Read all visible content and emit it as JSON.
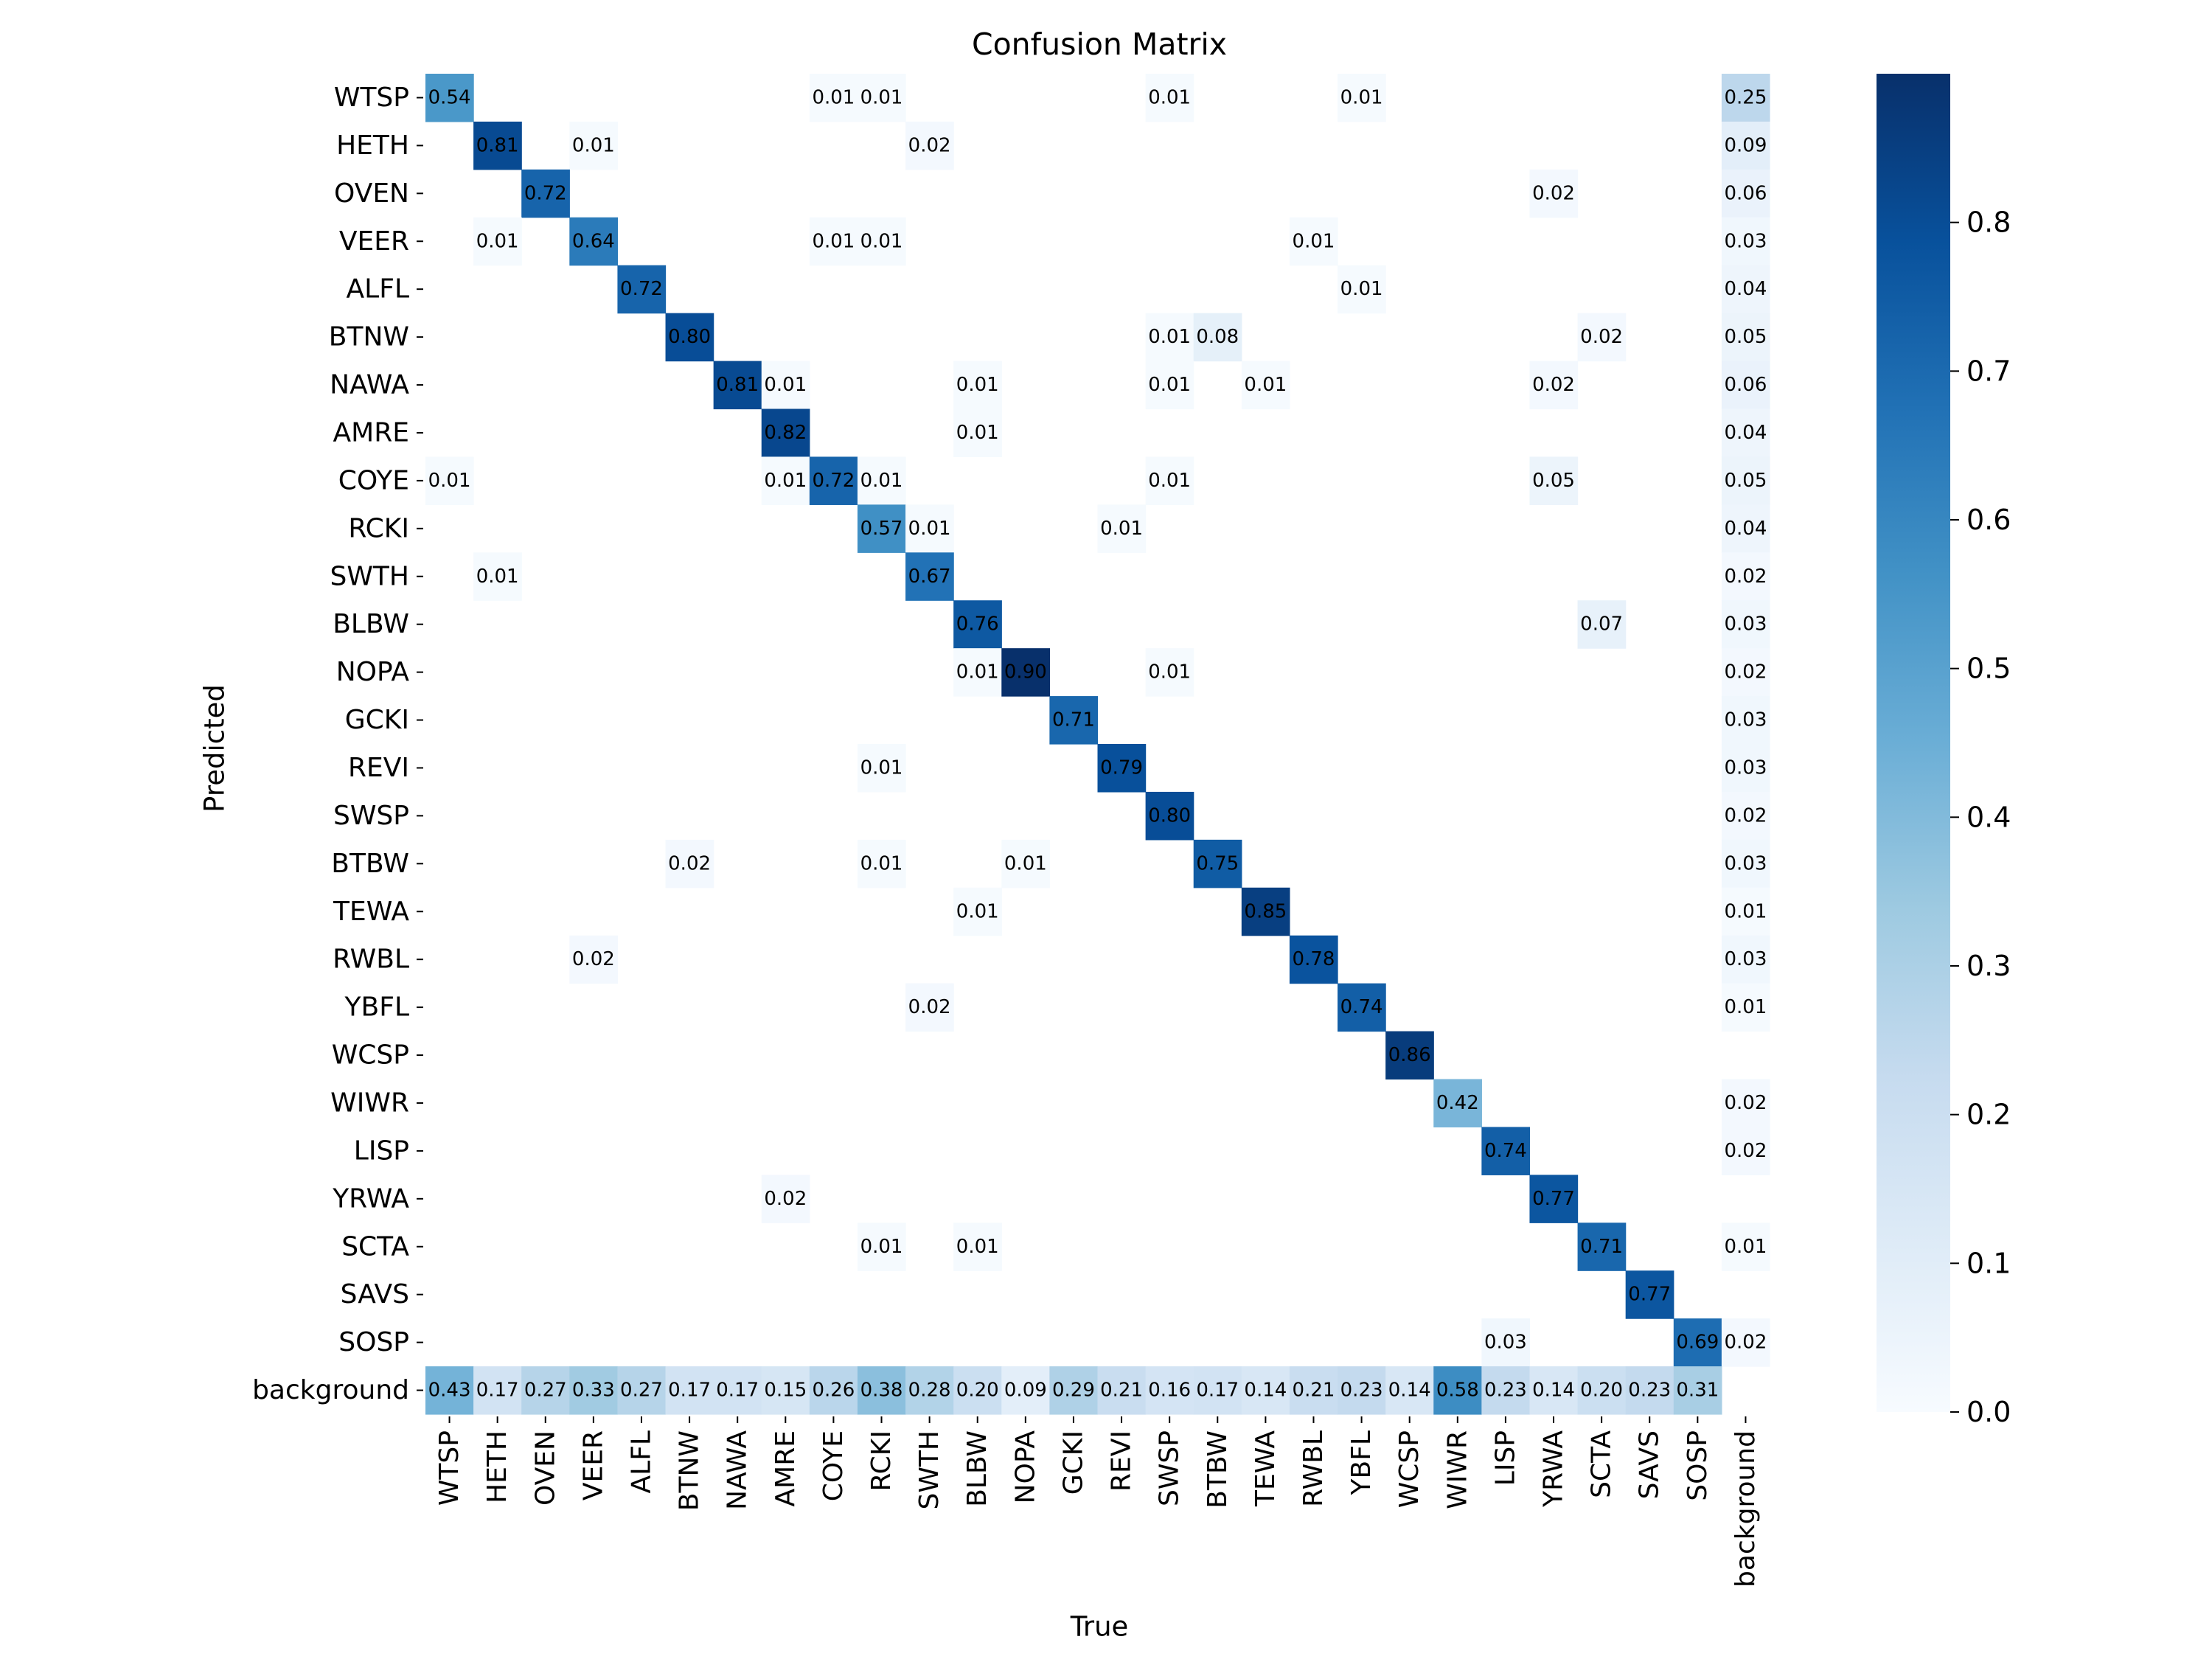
{
  "chart_data": {
    "type": "heatmap",
    "title": "Confusion Matrix",
    "xlabel": "True",
    "ylabel": "Predicted",
    "labels": [
      "WTSP",
      "HETH",
      "OVEN",
      "VEER",
      "ALFL",
      "BTNW",
      "NAWA",
      "AMRE",
      "COYE",
      "RCKI",
      "SWTH",
      "BLBW",
      "NOPA",
      "GCKI",
      "REVI",
      "SWSP",
      "BTBW",
      "TEWA",
      "RWBL",
      "YBFL",
      "WCSP",
      "WIWR",
      "LISP",
      "YRWA",
      "SCTA",
      "SAVS",
      "SOSP",
      "background"
    ],
    "cells": [
      {
        "row": "WTSP",
        "col": "WTSP",
        "value": 0.54
      },
      {
        "row": "WTSP",
        "col": "COYE",
        "value": 0.01
      },
      {
        "row": "WTSP",
        "col": "RCKI",
        "value": 0.01
      },
      {
        "row": "WTSP",
        "col": "SWSP",
        "value": 0.01
      },
      {
        "row": "WTSP",
        "col": "YBFL",
        "value": 0.01
      },
      {
        "row": "WTSP",
        "col": "background",
        "value": 0.25
      },
      {
        "row": "HETH",
        "col": "HETH",
        "value": 0.81
      },
      {
        "row": "HETH",
        "col": "VEER",
        "value": 0.01
      },
      {
        "row": "HETH",
        "col": "SWTH",
        "value": 0.02
      },
      {
        "row": "HETH",
        "col": "background",
        "value": 0.09
      },
      {
        "row": "OVEN",
        "col": "OVEN",
        "value": 0.72
      },
      {
        "row": "OVEN",
        "col": "YRWA",
        "value": 0.02
      },
      {
        "row": "OVEN",
        "col": "background",
        "value": 0.06
      },
      {
        "row": "VEER",
        "col": "HETH",
        "value": 0.01
      },
      {
        "row": "VEER",
        "col": "VEER",
        "value": 0.64
      },
      {
        "row": "VEER",
        "col": "COYE",
        "value": 0.01
      },
      {
        "row": "VEER",
        "col": "RCKI",
        "value": 0.01
      },
      {
        "row": "VEER",
        "col": "RWBL",
        "value": 0.01
      },
      {
        "row": "VEER",
        "col": "background",
        "value": 0.03
      },
      {
        "row": "ALFL",
        "col": "ALFL",
        "value": 0.72
      },
      {
        "row": "ALFL",
        "col": "YBFL",
        "value": 0.01
      },
      {
        "row": "ALFL",
        "col": "background",
        "value": 0.04
      },
      {
        "row": "BTNW",
        "col": "BTNW",
        "value": 0.8
      },
      {
        "row": "BTNW",
        "col": "SWSP",
        "value": 0.01
      },
      {
        "row": "BTNW",
        "col": "BTBW",
        "value": 0.08
      },
      {
        "row": "BTNW",
        "col": "SCTA",
        "value": 0.02
      },
      {
        "row": "BTNW",
        "col": "background",
        "value": 0.05
      },
      {
        "row": "NAWA",
        "col": "NAWA",
        "value": 0.81
      },
      {
        "row": "NAWA",
        "col": "AMRE",
        "value": 0.01
      },
      {
        "row": "NAWA",
        "col": "BLBW",
        "value": 0.01
      },
      {
        "row": "NAWA",
        "col": "SWSP",
        "value": 0.01
      },
      {
        "row": "NAWA",
        "col": "TEWA",
        "value": 0.01
      },
      {
        "row": "NAWA",
        "col": "YRWA",
        "value": 0.02
      },
      {
        "row": "NAWA",
        "col": "background",
        "value": 0.06
      },
      {
        "row": "AMRE",
        "col": "AMRE",
        "value": 0.82
      },
      {
        "row": "AMRE",
        "col": "BLBW",
        "value": 0.01
      },
      {
        "row": "AMRE",
        "col": "background",
        "value": 0.04
      },
      {
        "row": "COYE",
        "col": "WTSP",
        "value": 0.01
      },
      {
        "row": "COYE",
        "col": "AMRE",
        "value": 0.01
      },
      {
        "row": "COYE",
        "col": "COYE",
        "value": 0.72
      },
      {
        "row": "COYE",
        "col": "RCKI",
        "value": 0.01
      },
      {
        "row": "COYE",
        "col": "SWSP",
        "value": 0.01
      },
      {
        "row": "COYE",
        "col": "YRWA",
        "value": 0.05
      },
      {
        "row": "COYE",
        "col": "background",
        "value": 0.05
      },
      {
        "row": "RCKI",
        "col": "RCKI",
        "value": 0.57
      },
      {
        "row": "RCKI",
        "col": "SWTH",
        "value": 0.01
      },
      {
        "row": "RCKI",
        "col": "REVI",
        "value": 0.01
      },
      {
        "row": "RCKI",
        "col": "background",
        "value": 0.04
      },
      {
        "row": "SWTH",
        "col": "HETH",
        "value": 0.01
      },
      {
        "row": "SWTH",
        "col": "SWTH",
        "value": 0.67
      },
      {
        "row": "SWTH",
        "col": "background",
        "value": 0.02
      },
      {
        "row": "BLBW",
        "col": "BLBW",
        "value": 0.76
      },
      {
        "row": "BLBW",
        "col": "SCTA",
        "value": 0.07
      },
      {
        "row": "BLBW",
        "col": "background",
        "value": 0.03
      },
      {
        "row": "NOPA",
        "col": "BLBW",
        "value": 0.01
      },
      {
        "row": "NOPA",
        "col": "NOPA",
        "value": 0.9
      },
      {
        "row": "NOPA",
        "col": "SWSP",
        "value": 0.01
      },
      {
        "row": "NOPA",
        "col": "background",
        "value": 0.02
      },
      {
        "row": "GCKI",
        "col": "GCKI",
        "value": 0.71
      },
      {
        "row": "GCKI",
        "col": "background",
        "value": 0.03
      },
      {
        "row": "REVI",
        "col": "RCKI",
        "value": 0.01
      },
      {
        "row": "REVI",
        "col": "REVI",
        "value": 0.79
      },
      {
        "row": "REVI",
        "col": "background",
        "value": 0.03
      },
      {
        "row": "SWSP",
        "col": "SWSP",
        "value": 0.8
      },
      {
        "row": "SWSP",
        "col": "background",
        "value": 0.02
      },
      {
        "row": "BTBW",
        "col": "BTNW",
        "value": 0.02
      },
      {
        "row": "BTBW",
        "col": "RCKI",
        "value": 0.01
      },
      {
        "row": "BTBW",
        "col": "NOPA",
        "value": 0.01
      },
      {
        "row": "BTBW",
        "col": "BTBW",
        "value": 0.75
      },
      {
        "row": "BTBW",
        "col": "background",
        "value": 0.03
      },
      {
        "row": "TEWA",
        "col": "BLBW",
        "value": 0.01
      },
      {
        "row": "TEWA",
        "col": "TEWA",
        "value": 0.85
      },
      {
        "row": "TEWA",
        "col": "background",
        "value": 0.01
      },
      {
        "row": "RWBL",
        "col": "VEER",
        "value": 0.02
      },
      {
        "row": "RWBL",
        "col": "RWBL",
        "value": 0.78
      },
      {
        "row": "RWBL",
        "col": "background",
        "value": 0.03
      },
      {
        "row": "YBFL",
        "col": "SWTH",
        "value": 0.02
      },
      {
        "row": "YBFL",
        "col": "YBFL",
        "value": 0.74
      },
      {
        "row": "YBFL",
        "col": "background",
        "value": 0.01
      },
      {
        "row": "WCSP",
        "col": "WCSP",
        "value": 0.86
      },
      {
        "row": "WIWR",
        "col": "WIWR",
        "value": 0.42
      },
      {
        "row": "WIWR",
        "col": "background",
        "value": 0.02
      },
      {
        "row": "LISP",
        "col": "LISP",
        "value": 0.74
      },
      {
        "row": "LISP",
        "col": "background",
        "value": 0.02
      },
      {
        "row": "YRWA",
        "col": "AMRE",
        "value": 0.02
      },
      {
        "row": "YRWA",
        "col": "YRWA",
        "value": 0.77
      },
      {
        "row": "SCTA",
        "col": "RCKI",
        "value": 0.01
      },
      {
        "row": "SCTA",
        "col": "BLBW",
        "value": 0.01
      },
      {
        "row": "SCTA",
        "col": "SCTA",
        "value": 0.71
      },
      {
        "row": "SCTA",
        "col": "background",
        "value": 0.01
      },
      {
        "row": "SAVS",
        "col": "SAVS",
        "value": 0.77
      },
      {
        "row": "SOSP",
        "col": "LISP",
        "value": 0.03
      },
      {
        "row": "SOSP",
        "col": "SOSP",
        "value": 0.69
      },
      {
        "row": "SOSP",
        "col": "background",
        "value": 0.02
      },
      {
        "row": "background",
        "col": "WTSP",
        "value": 0.43
      },
      {
        "row": "background",
        "col": "HETH",
        "value": 0.17
      },
      {
        "row": "background",
        "col": "OVEN",
        "value": 0.27
      },
      {
        "row": "background",
        "col": "VEER",
        "value": 0.33
      },
      {
        "row": "background",
        "col": "ALFL",
        "value": 0.27
      },
      {
        "row": "background",
        "col": "BTNW",
        "value": 0.17
      },
      {
        "row": "background",
        "col": "NAWA",
        "value": 0.17
      },
      {
        "row": "background",
        "col": "AMRE",
        "value": 0.15
      },
      {
        "row": "background",
        "col": "COYE",
        "value": 0.26
      },
      {
        "row": "background",
        "col": "RCKI",
        "value": 0.38
      },
      {
        "row": "background",
        "col": "SWTH",
        "value": 0.28
      },
      {
        "row": "background",
        "col": "BLBW",
        "value": 0.2
      },
      {
        "row": "background",
        "col": "NOPA",
        "value": 0.09
      },
      {
        "row": "background",
        "col": "GCKI",
        "value": 0.29
      },
      {
        "row": "background",
        "col": "REVI",
        "value": 0.21
      },
      {
        "row": "background",
        "col": "SWSP",
        "value": 0.16
      },
      {
        "row": "background",
        "col": "BTBW",
        "value": 0.17
      },
      {
        "row": "background",
        "col": "TEWA",
        "value": 0.14
      },
      {
        "row": "background",
        "col": "RWBL",
        "value": 0.21
      },
      {
        "row": "background",
        "col": "YBFL",
        "value": 0.23
      },
      {
        "row": "background",
        "col": "WCSP",
        "value": 0.14
      },
      {
        "row": "background",
        "col": "WIWR",
        "value": 0.58
      },
      {
        "row": "background",
        "col": "LISP",
        "value": 0.23
      },
      {
        "row": "background",
        "col": "YRWA",
        "value": 0.14
      },
      {
        "row": "background",
        "col": "SCTA",
        "value": 0.2
      },
      {
        "row": "background",
        "col": "SAVS",
        "value": 0.23
      },
      {
        "row": "background",
        "col": "SOSP",
        "value": 0.31
      }
    ],
    "colorbar": {
      "min": 0.0,
      "max": 0.9,
      "ticks": [
        0.0,
        0.1,
        0.2,
        0.3,
        0.4,
        0.5,
        0.6,
        0.7,
        0.8
      ],
      "tick_labels": [
        "0.0",
        "0.1",
        "0.2",
        "0.3",
        "0.4",
        "0.5",
        "0.6",
        "0.7",
        "0.8"
      ]
    },
    "colormap": "Blues",
    "colormap_stops": [
      "#f7fbff",
      "#deebf7",
      "#c6dbef",
      "#9ecae1",
      "#6baed6",
      "#4292c6",
      "#2171b5",
      "#08519c",
      "#08306b"
    ],
    "annotation_threshold": 0.45
  }
}
